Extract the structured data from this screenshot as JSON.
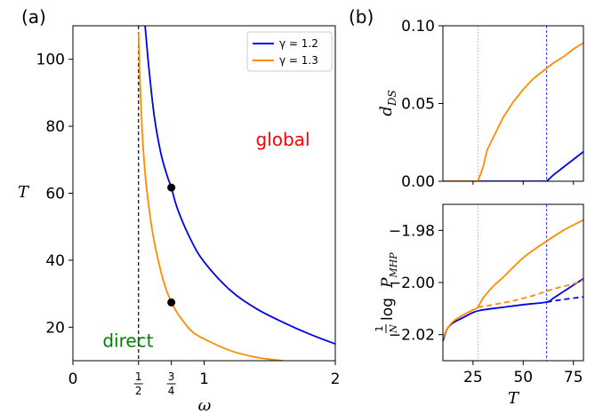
{
  "panel_a_label": "(a)",
  "panel_b_label": "(b)",
  "chart_data": [
    {
      "panel": "(a)",
      "type": "line",
      "xlabel": "ω",
      "ylabel": "T",
      "xlim": [
        0,
        2
      ],
      "ylim": [
        10,
        110
      ],
      "x_ticks": [
        {
          "value": 0,
          "label": "0"
        },
        {
          "value": 0.5,
          "label": "1/2"
        },
        {
          "value": 0.75,
          "label": "3/4"
        },
        {
          "value": 1,
          "label": "1"
        },
        {
          "value": 2,
          "label": "2"
        }
      ],
      "y_ticks": [
        20,
        40,
        60,
        80,
        100
      ],
      "legend": {
        "position": "top-right",
        "entries": [
          "γ = 1.2",
          "γ = 1.3"
        ]
      },
      "series": [
        {
          "name": "γ = 1.2",
          "color": "#0000ee",
          "x": [
            0.55,
            0.58,
            0.62,
            0.67,
            0.72,
            0.75,
            0.8,
            0.9,
            1.0,
            1.2,
            1.4,
            1.6,
            1.8,
            2.0
          ],
          "y": [
            110,
            97,
            83,
            72,
            65,
            61.7,
            55,
            46,
            39.5,
            31,
            25.5,
            21.5,
            18,
            15
          ]
        },
        {
          "name": "γ = 1.3",
          "color": "#ff8c00",
          "x": [
            0.5,
            0.52,
            0.55,
            0.6,
            0.65,
            0.7,
            0.75,
            0.8,
            0.9,
            1.0,
            1.2,
            1.4,
            1.6
          ],
          "y": [
            108,
            85,
            66,
            50,
            40,
            32.5,
            27.5,
            24,
            19,
            16.5,
            13,
            11,
            10
          ]
        }
      ],
      "points": [
        {
          "x": 0.75,
          "y": 61.7
        },
        {
          "x": 0.75,
          "y": 27.4
        }
      ],
      "vertical_line": {
        "x": 0.5,
        "style": "dashed",
        "color": "#000000"
      },
      "annotations": [
        {
          "text": "global",
          "color": "#ff0000",
          "x": 1.6,
          "y": 76
        },
        {
          "text": "direct",
          "color": "#008000",
          "x": 0.42,
          "y": 16
        }
      ]
    },
    {
      "panel": "(b) top",
      "type": "line",
      "ylabel": "d_DS",
      "xlim": [
        10,
        80
      ],
      "ylim": [
        0,
        0.1
      ],
      "y_ticks": [
        "0.00",
        "0.05",
        "0.10"
      ],
      "vlines": [
        {
          "x": 27.4,
          "color": "#ff8c00",
          "style": "dotted"
        },
        {
          "x": 61.7,
          "color": "#0000ee",
          "style": "dashed"
        }
      ],
      "series": [
        {
          "name": "γ = 1.2",
          "color": "#0000ee",
          "x": [
            10,
            61.7,
            65,
            70,
            75,
            80
          ],
          "y": [
            0,
            0,
            0.004,
            0.009,
            0.014,
            0.019
          ]
        },
        {
          "name": "γ = 1.3",
          "color": "#ff8c00",
          "x": [
            10,
            27.4,
            30,
            32,
            35,
            40,
            45,
            50,
            55,
            60,
            65,
            70,
            75,
            80
          ],
          "y": [
            0,
            0,
            0.009,
            0.02,
            0.028,
            0.041,
            0.051,
            0.059,
            0.066,
            0.071,
            0.076,
            0.08,
            0.085,
            0.089
          ]
        }
      ]
    },
    {
      "panel": "(b) bottom",
      "type": "line",
      "xlabel": "T",
      "ylabel": "(1/N) log P_MHP",
      "xlim": [
        10,
        80
      ],
      "ylim": [
        -2.03,
        -1.97
      ],
      "x_ticks": [
        "25",
        "50",
        "75"
      ],
      "y_ticks": [
        "−1.98",
        "−2.00",
        "−2.02"
      ],
      "vlines": [
        {
          "x": 27.4,
          "color": "#ff8c00",
          "style": "dotted"
        },
        {
          "x": 61.7,
          "color": "#0000ee",
          "style": "dashed"
        }
      ],
      "series": [
        {
          "name": "γ = 1.2 solid",
          "color": "#0000ee",
          "style": "solid",
          "x": [
            10,
            12,
            15,
            20,
            25,
            30,
            40,
            50,
            61.7,
            65,
            70,
            75,
            80
          ],
          "y": [
            -2.0225,
            -2.018,
            -2.0155,
            -2.0135,
            -2.0115,
            -2.0105,
            -2.0095,
            -2.0085,
            -2.0075,
            -2.006,
            -2.0035,
            -2.001,
            -1.9985
          ]
        },
        {
          "name": "γ = 1.2 dashed",
          "color": "#0000ee",
          "style": "dashed",
          "x": [
            61.7,
            70,
            80
          ],
          "y": [
            -2.0075,
            -2.0065,
            -2.0055
          ]
        },
        {
          "name": "γ = 1.3 solid",
          "color": "#ff8c00",
          "style": "solid",
          "x": [
            10,
            12,
            15,
            20,
            25,
            27.4,
            30,
            35,
            40,
            50,
            60,
            70,
            80
          ],
          "y": [
            -2.0215,
            -2.018,
            -2.015,
            -2.0125,
            -2.0105,
            -2.0095,
            -2.006,
            -2.0015,
            -1.998,
            -1.9905,
            -1.985,
            -1.98,
            -1.976
          ]
        },
        {
          "name": "γ = 1.3 dashed",
          "color": "#ff8c00",
          "style": "dashed",
          "x": [
            27.4,
            35,
            45,
            55,
            65,
            75,
            80
          ],
          "y": [
            -2.0095,
            -2.0085,
            -2.007,
            -2.005,
            -2.0025,
            -2.0005,
            -1.999
          ]
        }
      ]
    }
  ]
}
